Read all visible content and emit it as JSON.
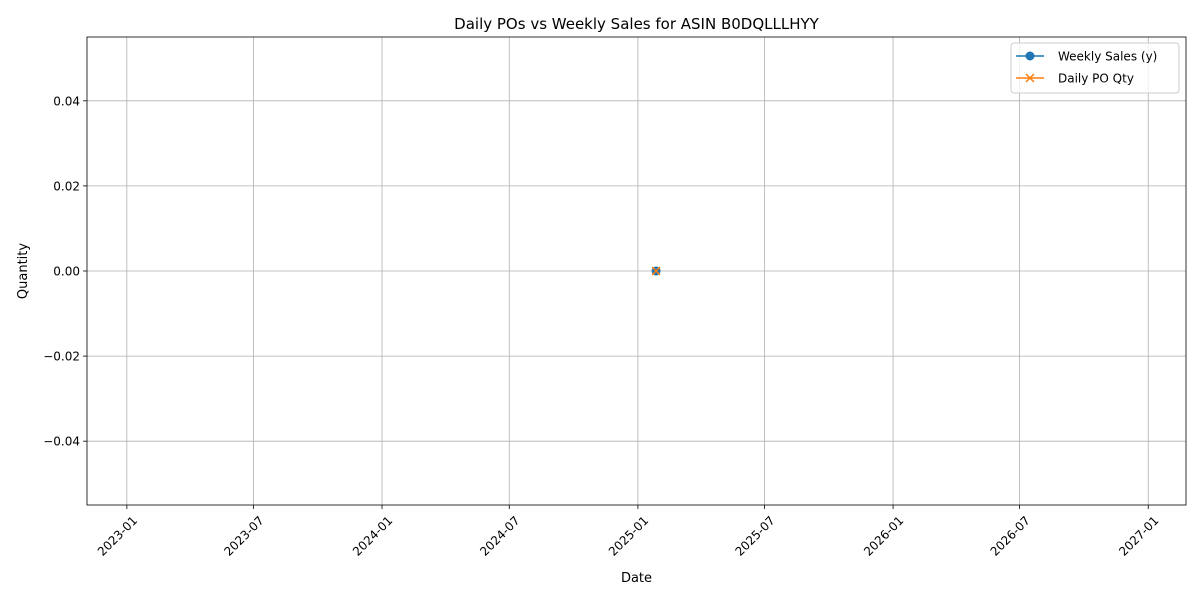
{
  "chart_data": {
    "type": "line",
    "title": "Daily POs vs Weekly Sales for ASIN B0DQLLLHYY",
    "xlabel": "Date",
    "ylabel": "Quantity",
    "x_axis_type": "date",
    "xlim": [
      "2022-11-05",
      "2027-02-24"
    ],
    "ylim": [
      -0.055,
      0.055
    ],
    "x_ticks": [
      "2023-01-01",
      "2023-07-01",
      "2024-01-01",
      "2024-07-01",
      "2025-01-01",
      "2025-07-01",
      "2026-01-01",
      "2026-07-01",
      "2027-01-01"
    ],
    "x_tick_labels": [
      "2023-01",
      "2023-07",
      "2024-01",
      "2024-07",
      "2025-01",
      "2025-07",
      "2026-01",
      "2026-07",
      "2027-01"
    ],
    "x_tick_rotation": 45,
    "y_ticks": [
      -0.04,
      -0.02,
      0.0,
      0.02,
      0.04
    ],
    "y_tick_labels": [
      "−0.04",
      "−0.02",
      "0.00",
      "0.02",
      "0.04"
    ],
    "grid": true,
    "legend_position": "top-right",
    "series": [
      {
        "name": "Weekly Sales (y)",
        "color": "#1f77b4",
        "marker": "circle",
        "points": [
          {
            "x": "2025-01-27",
            "y": 0
          }
        ]
      },
      {
        "name": "Daily PO Qty",
        "color": "#ff7f0e",
        "marker": "x",
        "points": [
          {
            "x": "2025-01-27",
            "y": 0
          }
        ]
      }
    ]
  }
}
